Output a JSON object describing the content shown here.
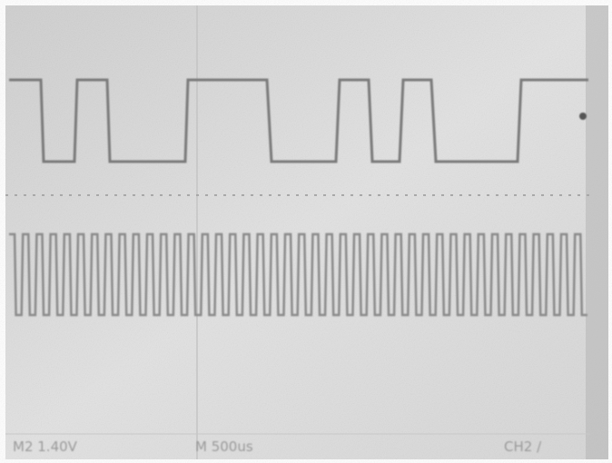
{
  "status_bar": {
    "channel_scale": "M2 1.40V",
    "timebase": "M 500us",
    "trigger": "CH2 /"
  }
}
